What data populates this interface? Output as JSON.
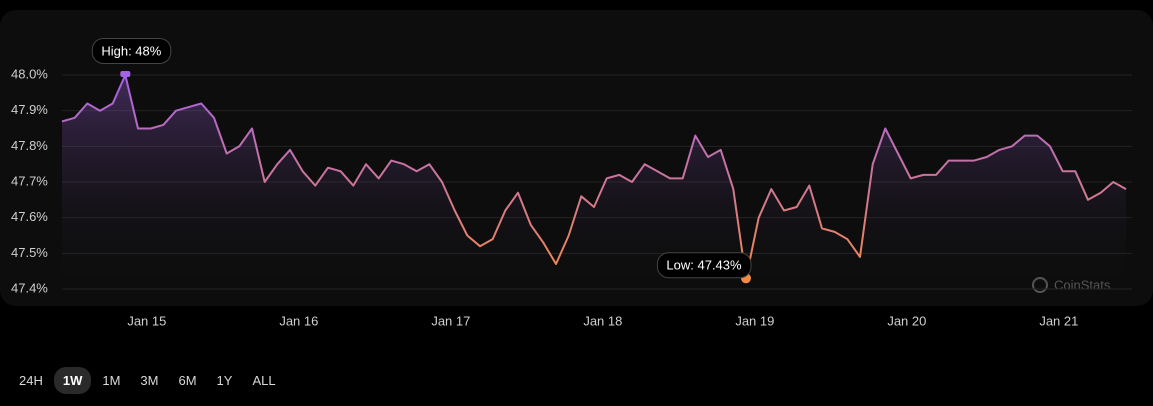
{
  "chart_data": {
    "type": "line",
    "values": [
      47.87,
      47.88,
      47.92,
      47.9,
      47.92,
      48.0,
      47.85,
      47.85,
      47.86,
      47.9,
      47.91,
      47.92,
      47.88,
      47.78,
      47.8,
      47.85,
      47.7,
      47.75,
      47.79,
      47.73,
      47.69,
      47.74,
      47.73,
      47.69,
      47.75,
      47.71,
      47.76,
      47.75,
      47.73,
      47.75,
      47.7,
      47.62,
      47.55,
      47.52,
      47.54,
      47.62,
      47.67,
      47.58,
      47.53,
      47.47,
      47.55,
      47.66,
      47.63,
      47.71,
      47.72,
      47.7,
      47.75,
      47.73,
      47.71,
      47.71,
      47.83,
      47.77,
      47.79,
      47.68,
      47.43,
      47.6,
      47.68,
      47.62,
      47.63,
      47.69,
      47.57,
      47.56,
      47.54,
      47.49,
      47.75,
      47.85,
      47.78,
      47.71,
      47.72,
      47.72,
      47.76,
      47.76,
      47.76,
      47.77,
      47.79,
      47.8,
      47.83,
      47.83,
      47.8,
      47.73,
      47.73,
      47.65,
      47.67,
      47.7,
      47.68
    ],
    "xlim": [
      0,
      84
    ],
    "xticks": [
      {
        "value": 6.7,
        "label": "Jan 15"
      },
      {
        "value": 18.7,
        "label": "Jan 16"
      },
      {
        "value": 30.7,
        "label": "Jan 17"
      },
      {
        "value": 42.7,
        "label": "Jan 18"
      },
      {
        "value": 54.7,
        "label": "Jan 19"
      },
      {
        "value": 66.7,
        "label": "Jan 20"
      },
      {
        "value": 78.7,
        "label": "Jan 21"
      }
    ],
    "ylim": [
      47.4,
      48.0
    ],
    "yticks": [
      {
        "value": 47.4,
        "label": "47.4%"
      },
      {
        "value": 47.5,
        "label": "47.5%"
      },
      {
        "value": 47.6,
        "label": "47.6%"
      },
      {
        "value": 47.7,
        "label": "47.7%"
      },
      {
        "value": 47.8,
        "label": "47.8%"
      },
      {
        "value": 47.9,
        "label": "47.9%"
      },
      {
        "value": 48.0,
        "label": "48.0%"
      }
    ],
    "grid": true,
    "colors": {
      "high": "#a462e6",
      "low": "#f58a45"
    },
    "high_label": "High: 48%",
    "low_label": "Low: 47.43%",
    "watermark": "CoinStats"
  },
  "range_buttons": [
    "24H",
    "1W",
    "1M",
    "3M",
    "6M",
    "1Y",
    "ALL"
  ],
  "selected_range": 1
}
